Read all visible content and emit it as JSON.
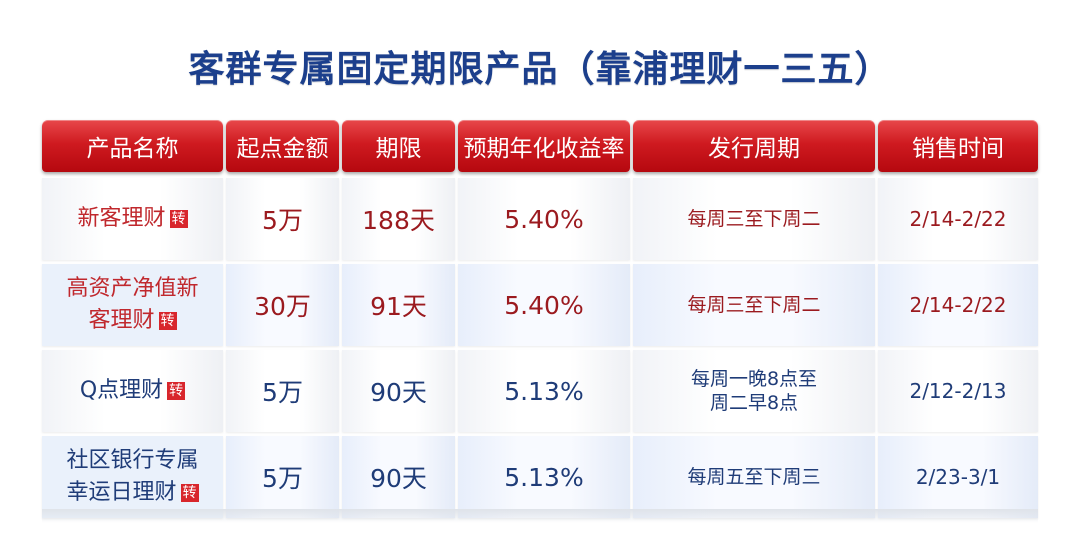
{
  "title": "客群专属固定期限产品（靠浦理财一三五）",
  "header": [
    "产品名称",
    "起点金额",
    "期限",
    "预期年化收益率",
    "发行周期",
    "销售时间"
  ],
  "rows": [
    {
      "name_line1": "新客理财",
      "name_line2": "",
      "tag": "转",
      "amount": "5万",
      "term": "188天",
      "rate": "5.40%",
      "cycle_line1": "每周三至下周二",
      "cycle_line2": "",
      "sale": "2/14-2/22"
    },
    {
      "name_line1": "高资产净值新",
      "name_line2": "客理财",
      "tag": "转",
      "amount": "30万",
      "term": "91天",
      "rate": "5.40%",
      "cycle_line1": "每周三至下周二",
      "cycle_line2": "",
      "sale": "2/14-2/22"
    },
    {
      "name_line1": "Q点理财",
      "name_line2": "",
      "tag": "转",
      "amount": "5万",
      "term": "90天",
      "rate": "5.13%",
      "cycle_line1": "每周一晚8点至",
      "cycle_line2": "周二早8点",
      "sale": "2/12-2/13"
    },
    {
      "name_line1": "社区银行专属",
      "name_line2": "幸运日理财",
      "tag": "转",
      "amount": "5万",
      "term": "90天",
      "rate": "5.13%",
      "cycle_line1": "每周五至下周三",
      "cycle_line2": "",
      "sale": "2/23-3/1"
    }
  ],
  "colors": {
    "title": "#1c3f8c",
    "header_red": "#cf1a20",
    "text_red": "#9b1a1f",
    "text_blue": "#1f3c78"
  }
}
